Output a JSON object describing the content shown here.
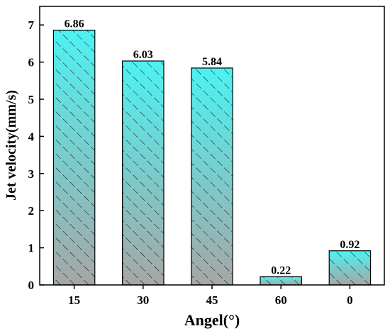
{
  "chart_data": {
    "type": "bar",
    "categories": [
      "15",
      "30",
      "45",
      "60",
      "0"
    ],
    "values": [
      6.86,
      6.03,
      5.84,
      0.22,
      0.92
    ],
    "data_labels": [
      "6.86",
      "6.03",
      "5.84",
      "0.22",
      "0.92"
    ],
    "y_ticks": [
      "0",
      "1",
      "2",
      "3",
      "4",
      "5",
      "6",
      "7"
    ],
    "xlabel": "Angel(°)",
    "ylabel": "Jet velocity(mm/s)",
    "ylim": [
      0,
      7.5
    ],
    "grid": false,
    "bar_fill_top": "#4DF2F2",
    "bar_fill_bottom": "#A6A6A6",
    "hatch": "diagonal",
    "bar_edge": "#000000"
  }
}
